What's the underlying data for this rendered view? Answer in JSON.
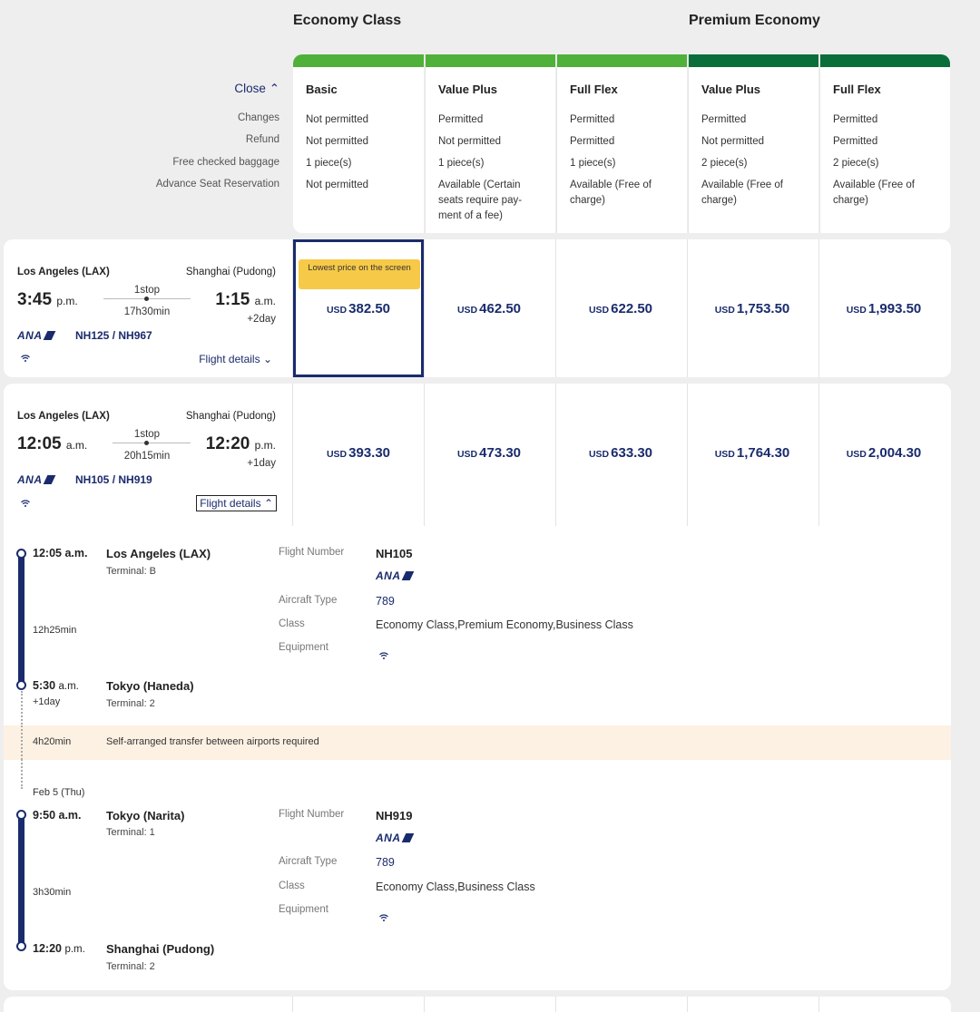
{
  "classes": {
    "economy": "Economy Class",
    "premium": "Premium Economy"
  },
  "colors": {
    "economy_bar": "#4fb13a",
    "premium_bar": "#0a6e3a",
    "navy": "#1a2b6d",
    "highlight_badge": "#f7c948",
    "transfer_bg": "#fdf1e3"
  },
  "close_label": "Close",
  "row_labels": [
    "Changes",
    "Refund",
    "Free checked baggage",
    "Advance Seat Reservation"
  ],
  "fares": [
    {
      "name": "Basic",
      "changes": "Not permitted",
      "refund": "Not permitted",
      "baggage": "1 piece(s)",
      "seat": "Not permitted"
    },
    {
      "name": "Value Plus",
      "changes": "Permitted",
      "refund": "Not permitted",
      "baggage": "1 piece(s)",
      "seat": "Available (Certain seats require pay-ment of a fee)"
    },
    {
      "name": "Full Flex",
      "changes": "Permitted",
      "refund": "Permitted",
      "baggage": "1 piece(s)",
      "seat": "Available (Free of charge)"
    },
    {
      "name": "Value Plus",
      "changes": "Permitted",
      "refund": "Not permitted",
      "baggage": "2 piece(s)",
      "seat": "Available (Free of charge)"
    },
    {
      "name": "Full Flex",
      "changes": "Permitted",
      "refund": "Permitted",
      "baggage": "2 piece(s)",
      "seat": "Available (Free of charge)"
    }
  ],
  "flights": [
    {
      "origin": "Los Angeles (LAX)",
      "destination": "Shanghai (Pudong)",
      "dep_time": "3:45",
      "dep_ampm": "p.m.",
      "arr_time": "1:15",
      "arr_ampm": "a.m.",
      "stops": "1stop",
      "duration": "17h30min",
      "day_offset": "+2day",
      "airline": "ANA",
      "flight_numbers": "NH125 / NH967",
      "details_label": "Flight details",
      "currency": "USD",
      "prices": [
        "382.50",
        "462.50",
        "622.50",
        "1,753.50",
        "1,993.50"
      ],
      "badge": "Lowest price on the screen"
    },
    {
      "origin": "Los Angeles (LAX)",
      "destination": "Shanghai (Pudong)",
      "dep_time": "12:05",
      "dep_ampm": "a.m.",
      "arr_time": "12:20",
      "arr_ampm": "p.m.",
      "stops": "1stop",
      "duration": "20h15min",
      "day_offset": "+1day",
      "airline": "ANA",
      "flight_numbers": "NH105 / NH919",
      "details_label": "Flight details",
      "currency": "USD",
      "prices": [
        "393.30",
        "473.30",
        "633.30",
        "1,764.30",
        "2,004.30"
      ]
    }
  ],
  "details": {
    "segments": [
      {
        "dep_time": "12:05 a.m.",
        "dep_city": "Los Angeles (LAX)",
        "dep_terminal": "Terminal: B",
        "duration": "12h25min",
        "arr_time": "5:30",
        "arr_ampm": "a.m.",
        "arr_offset": "+1day",
        "arr_city": "Tokyo (Haneda)",
        "arr_terminal": "Terminal: 2",
        "flight_number_label": "Flight Number",
        "flight_number": "NH105",
        "airline": "ANA",
        "aircraft_label": "Aircraft Type",
        "aircraft": "789",
        "class_label": "Class",
        "class": "Economy Class,Premium Economy,Business Class",
        "equipment_label": "Equipment"
      },
      {
        "date": "Feb 5 (Thu)",
        "dep_time": "9:50 a.m.",
        "dep_city": "Tokyo (Narita)",
        "dep_terminal": "Terminal: 1",
        "duration": "3h30min",
        "arr_time": "12:20",
        "arr_ampm": "p.m.",
        "arr_city": "Shanghai (Pudong)",
        "arr_terminal": "Terminal: 2",
        "flight_number_label": "Flight Number",
        "flight_number": "NH919",
        "airline": "ANA",
        "aircraft_label": "Aircraft Type",
        "aircraft": "789",
        "class_label": "Class",
        "class": "Economy Class,Business Class",
        "equipment_label": "Equipment"
      }
    ],
    "transfer": {
      "duration": "4h20min",
      "note": "Self-arranged transfer between airports required"
    }
  }
}
